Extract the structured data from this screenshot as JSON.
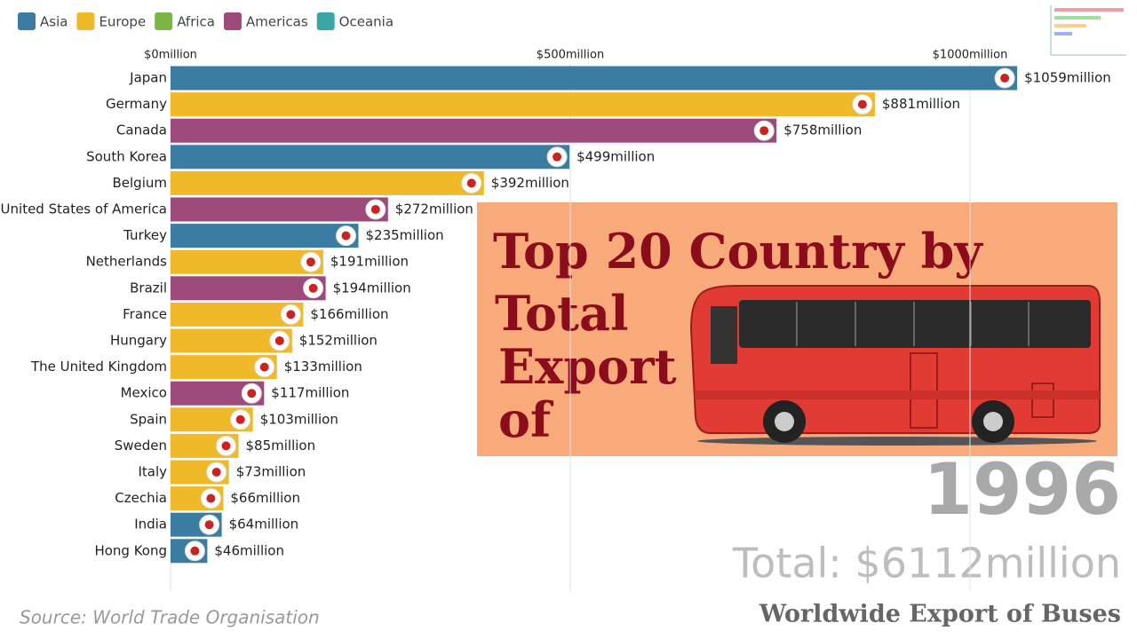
{
  "chart_data": {
    "type": "bar",
    "orientation": "horizontal",
    "categories": [
      "Japan",
      "Germany",
      "Canada",
      "South Korea",
      "Belgium",
      "United States of America",
      "Turkey",
      "Netherlands",
      "Brazil",
      "France",
      "Hungary",
      "The United Kingdom",
      "Mexico",
      "Spain",
      "Sweden",
      "Italy",
      "Czechia",
      "India",
      "Hong Kong"
    ],
    "series": [
      {
        "name": "Asia",
        "color": "#3b7ca3",
        "values": [
          1059,
          null,
          null,
          499,
          null,
          null,
          235,
          null,
          null,
          null,
          null,
          null,
          null,
          null,
          null,
          null,
          null,
          64,
          46
        ]
      },
      {
        "name": "Europe",
        "color": "#f0b929",
        "values": [
          null,
          881,
          null,
          null,
          392,
          null,
          null,
          191,
          null,
          166,
          152,
          133,
          null,
          103,
          85,
          73,
          66,
          null,
          null
        ]
      },
      {
        "name": "Africa",
        "color": "#7cb548",
        "values": [
          null,
          null,
          null,
          null,
          null,
          null,
          null,
          null,
          null,
          null,
          null,
          null,
          null,
          null,
          null,
          null,
          null,
          null,
          null
        ]
      },
      {
        "name": "Americas",
        "color": "#9c4a7c",
        "values": [
          null,
          null,
          758,
          null,
          null,
          272,
          null,
          null,
          194,
          null,
          null,
          null,
          117,
          null,
          null,
          null,
          null,
          null,
          null
        ]
      },
      {
        "name": "Oceania",
        "color": "#3aa6a4",
        "values": [
          null,
          null,
          null,
          null,
          null,
          null,
          null,
          null,
          null,
          null,
          null,
          null,
          null,
          null,
          null,
          null,
          null,
          null,
          null
        ]
      }
    ],
    "value_labels": [
      "$1059million",
      "$881million",
      "$758million",
      "$499million",
      "$392million",
      "$272million",
      "$235million",
      "$191million",
      "$194million",
      "$166million",
      "$152million",
      "$133million",
      "$117million",
      "$103million",
      "$85million",
      "$73million",
      "$66million",
      "$64million",
      "$46million"
    ],
    "xlim": [
      0,
      1200
    ],
    "xticks": [
      {
        "value": 0,
        "label": "$0million"
      },
      {
        "value": 500,
        "label": "$500million"
      },
      {
        "value": 1000,
        "label": "$1000million"
      }
    ],
    "grid": true,
    "legend": "top-left",
    "title_lines": [
      "Top 20 Country by",
      "Total",
      "Export",
      "of"
    ],
    "year": "1996",
    "total_label": "Total: $6112million",
    "subtitle": "Worldwide Export of Buses",
    "source": "Source: World Trade Organisation"
  }
}
